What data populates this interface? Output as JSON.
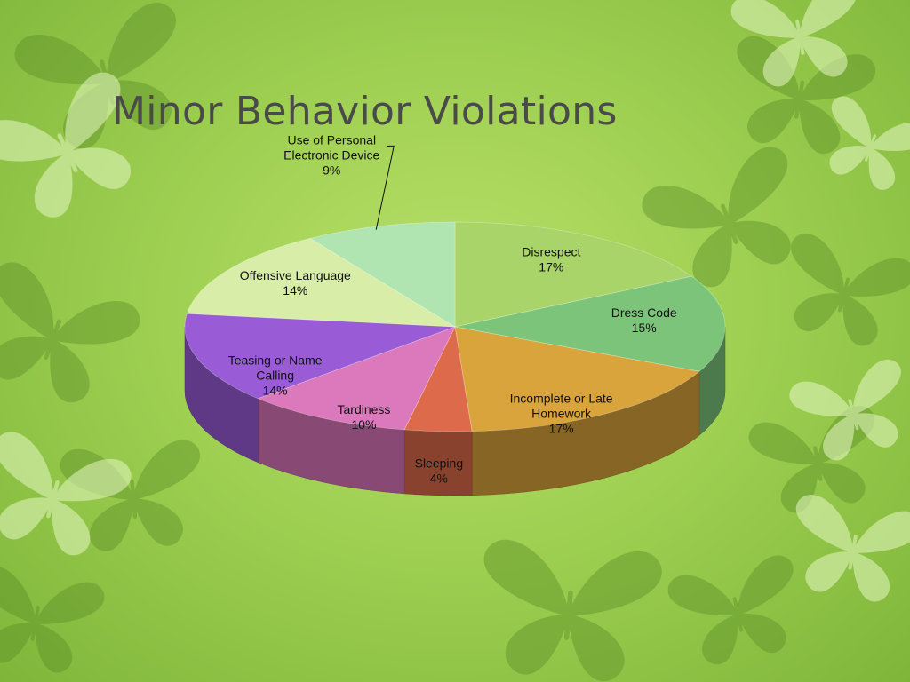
{
  "slide": {
    "title": "Minor Behavior Violations"
  },
  "colors": {
    "background": "#9fd052",
    "title": "#4a4a4a"
  },
  "chart_data": {
    "type": "pie",
    "three_d": true,
    "legend": "none",
    "slices": [
      {
        "label": "Disrespect",
        "label_lines": [
          "Disrespect"
        ],
        "value": 17,
        "display": "17%",
        "color": "#a9d46a"
      },
      {
        "label": "Dress Code",
        "label_lines": [
          "Dress Code"
        ],
        "value": 15,
        "display": "15%",
        "color": "#7cc47a"
      },
      {
        "label": "Incomplete or Late Homework",
        "label_lines": [
          "Incomplete or Late",
          "Homework"
        ],
        "value": 17,
        "display": "17%",
        "color": "#daa43c"
      },
      {
        "label": "Sleeping",
        "label_lines": [
          "Sleeping"
        ],
        "value": 4,
        "display": "4%",
        "color": "#dd6a4a"
      },
      {
        "label": "Tardiness",
        "label_lines": [
          "Tardiness"
        ],
        "value": 10,
        "display": "10%",
        "color": "#dc78bc"
      },
      {
        "label": "Teasing or Name Calling",
        "label_lines": [
          "Teasing or Name",
          "Calling"
        ],
        "value": 14,
        "display": "14%",
        "color": "#9a5cd6"
      },
      {
        "label": "Offensive Language",
        "label_lines": [
          "Offensive Language"
        ],
        "value": 14,
        "display": "14%",
        "color": "#d8eea8"
      },
      {
        "label": "Use of Personal Electronic Device",
        "label_lines": [
          "Use of Personal",
          "Electronic Device"
        ],
        "value": 9,
        "display": "9%",
        "color": "#b0e4b0"
      }
    ]
  }
}
